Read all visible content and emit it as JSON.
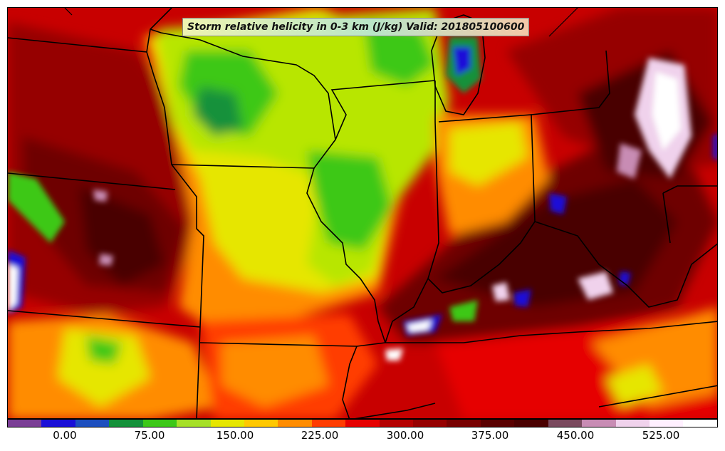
{
  "title": "Storm relative helicity in 0-3 km (J/kg) Valid: 201805100600",
  "colorbar": {
    "colors": [
      "#7b3f96",
      "#1a10d8",
      "#1d4fbf",
      "#14913a",
      "#3cc818",
      "#a6e028",
      "#e6e600",
      "#ffc800",
      "#ff8c00",
      "#ff3c00",
      "#e60000",
      "#b40000",
      "#960000",
      "#780000",
      "#5a0000",
      "#4a0000",
      "#7a4a5e",
      "#c88cb4",
      "#f0d2ec",
      "#fff0ff",
      "#ffffff"
    ],
    "tick_labels": [
      "0.00",
      "75.00",
      "150.00",
      "225.00",
      "300.00",
      "375.00",
      "450.00",
      "525.00"
    ]
  },
  "map_colors": {
    "background": "#c80000",
    "dark_red": "#6e0000",
    "very_dark": "#4a0000",
    "red": "#e60000",
    "orange": "#ff8c00",
    "yellow": "#e6e600",
    "lime": "#b8e600",
    "green": "#3cc818",
    "dark_green": "#14913a",
    "blue": "#1a10d8",
    "pink": "#f0d2ec",
    "lake": "#ffffff",
    "borders": "#000000"
  }
}
